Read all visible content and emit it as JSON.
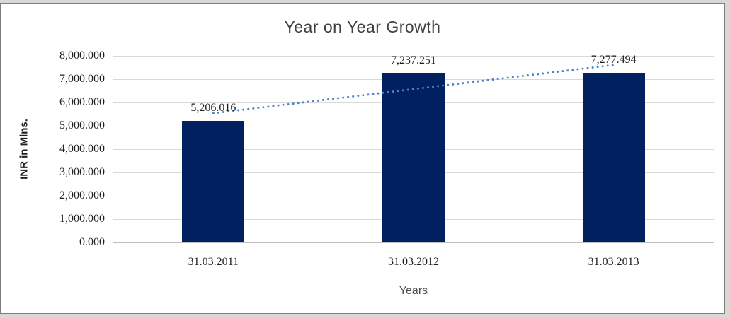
{
  "frame": {
    "background": "#FFFFFF",
    "outer_background": "#D8D8D8",
    "border_color": "#7F7F7F"
  },
  "chart_data": {
    "type": "bar",
    "title": "Year on Year Growth",
    "xlabel": "Years",
    "ylabel": "INR in Mlns.",
    "categories": [
      "31.03.2011",
      "31.03.2012",
      "31.03.2013"
    ],
    "values": [
      5206.016,
      7237.251,
      7277.494
    ],
    "data_labels": [
      "5,206.016",
      "7,237.251",
      "7,277.494"
    ],
    "ylim": [
      0,
      8000
    ],
    "ytick_step": 1000,
    "ytick_labels": [
      "0.000",
      "1,000.000",
      "2,000.000",
      "3,000.000",
      "4,000.000",
      "5,000.000",
      "6,000.000",
      "7,000.000",
      "8,000.000"
    ],
    "grid": true,
    "legend": "none",
    "bar_color": "#002060",
    "trendline": {
      "type": "linear",
      "style": "dotted",
      "color": "#4C82C6",
      "endpoint_values": [
        5537.85,
        7609.33
      ]
    },
    "colors": {
      "title": "#404040",
      "tick_label": "#1F1F1F",
      "axis_title": "#1F1F1F",
      "x_axis_title": "#4D4D4D",
      "gridline": "#D9D9D9",
      "axis_line": "#BFBFBF"
    }
  }
}
